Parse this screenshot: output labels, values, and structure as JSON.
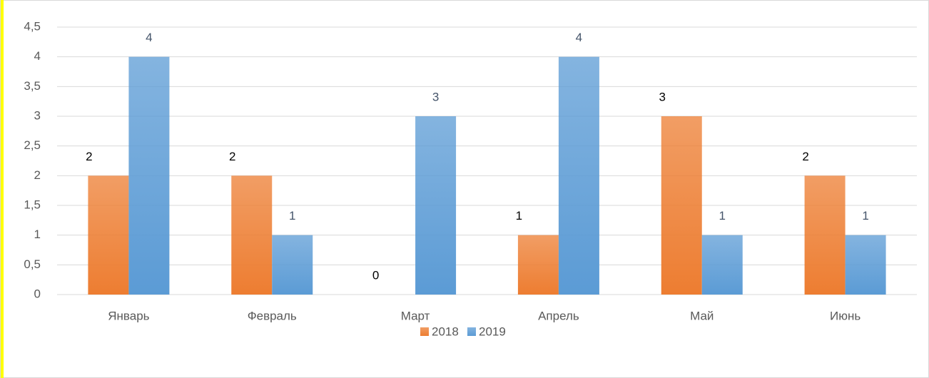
{
  "chart_data": {
    "type": "bar",
    "categories": [
      "Январь",
      "Февраль",
      "Март",
      "Апрель",
      "Май",
      "Июнь"
    ],
    "series": [
      {
        "name": "2018",
        "color": "#ed7d31",
        "values": [
          2,
          2,
          0,
          1,
          3,
          2
        ]
      },
      {
        "name": "2019",
        "color": "#5b9bd5",
        "values": [
          4,
          1,
          3,
          4,
          1,
          1
        ]
      }
    ],
    "ylim": [
      0,
      4.5
    ],
    "yticks": [
      0,
      {
        "value": 0.5,
        "label": "0,5"
      },
      1,
      {
        "value": 1.5,
        "label": "1,5"
      },
      2,
      {
        "value": 2.5,
        "label": "2,5"
      },
      3,
      {
        "value": 3.5,
        "label": "3,5"
      },
      4,
      {
        "value": 4.5,
        "label": "4,5"
      }
    ],
    "grid": true,
    "legend": "bottom"
  }
}
